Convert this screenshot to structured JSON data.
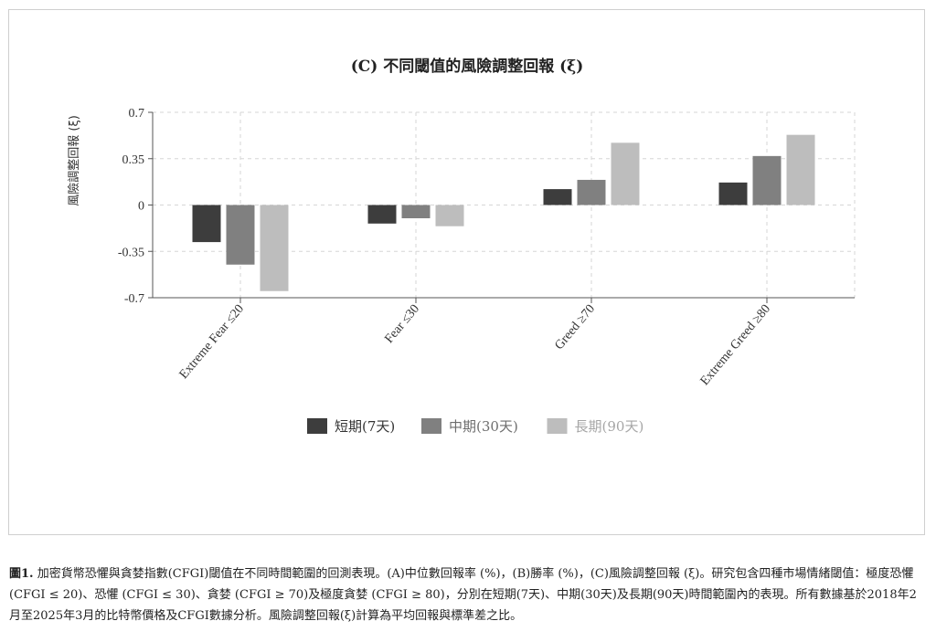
{
  "chart_data": {
    "type": "bar",
    "title": "(C) 不同閾值的風險調整回報 (ξ)",
    "ylabel": "風險調整回報 (ξ)",
    "xlabel": "",
    "categories": [
      "Extreme Fear ≤20",
      "Fear ≤30",
      "Greed ≥70",
      "Extreme Greed ≥80"
    ],
    "ylim": [
      -0.7,
      0.7
    ],
    "yticks": [
      0.7,
      0.35,
      0,
      -0.35,
      -0.7
    ],
    "ytick_labels": [
      "0.7",
      "0.35",
      "0",
      "-0.35",
      "-0.7"
    ],
    "grid": true,
    "legend_position": "bottom",
    "series": [
      {
        "name": "短期(7天)",
        "color": "#3d3d3d",
        "values": [
          -0.28,
          -0.14,
          0.12,
          0.17
        ]
      },
      {
        "name": "中期(30天)",
        "color": "#808080",
        "values": [
          -0.45,
          -0.1,
          0.19,
          0.37
        ]
      },
      {
        "name": "長期(90天)",
        "color": "#bdbdbd",
        "values": [
          -0.65,
          -0.16,
          0.47,
          0.53
        ]
      }
    ]
  },
  "caption": {
    "label": "圖1.",
    "text": "加密貨幣恐懼與貪婪指數(CFGI)閾值在不同時間範圍的回測表現。(A)中位數回報率 (%)，(B)勝率 (%)，(C)風險調整回報 (ξ)。研究包含四種市場情緒閾值：極度恐懼 (CFGI ≤ 20)、恐懼 (CFGI ≤ 30)、貪婪 (CFGI ≥ 70)及極度貪婪 (CFGI ≥ 80)，分別在短期(7天)、中期(30天)及長期(90天)時間範圍內的表現。所有數據基於2018年2月至2025年3月的比特幣價格及CFGI數據分析。風險調整回報(ξ)計算為平均回報與標準差之比。"
  }
}
